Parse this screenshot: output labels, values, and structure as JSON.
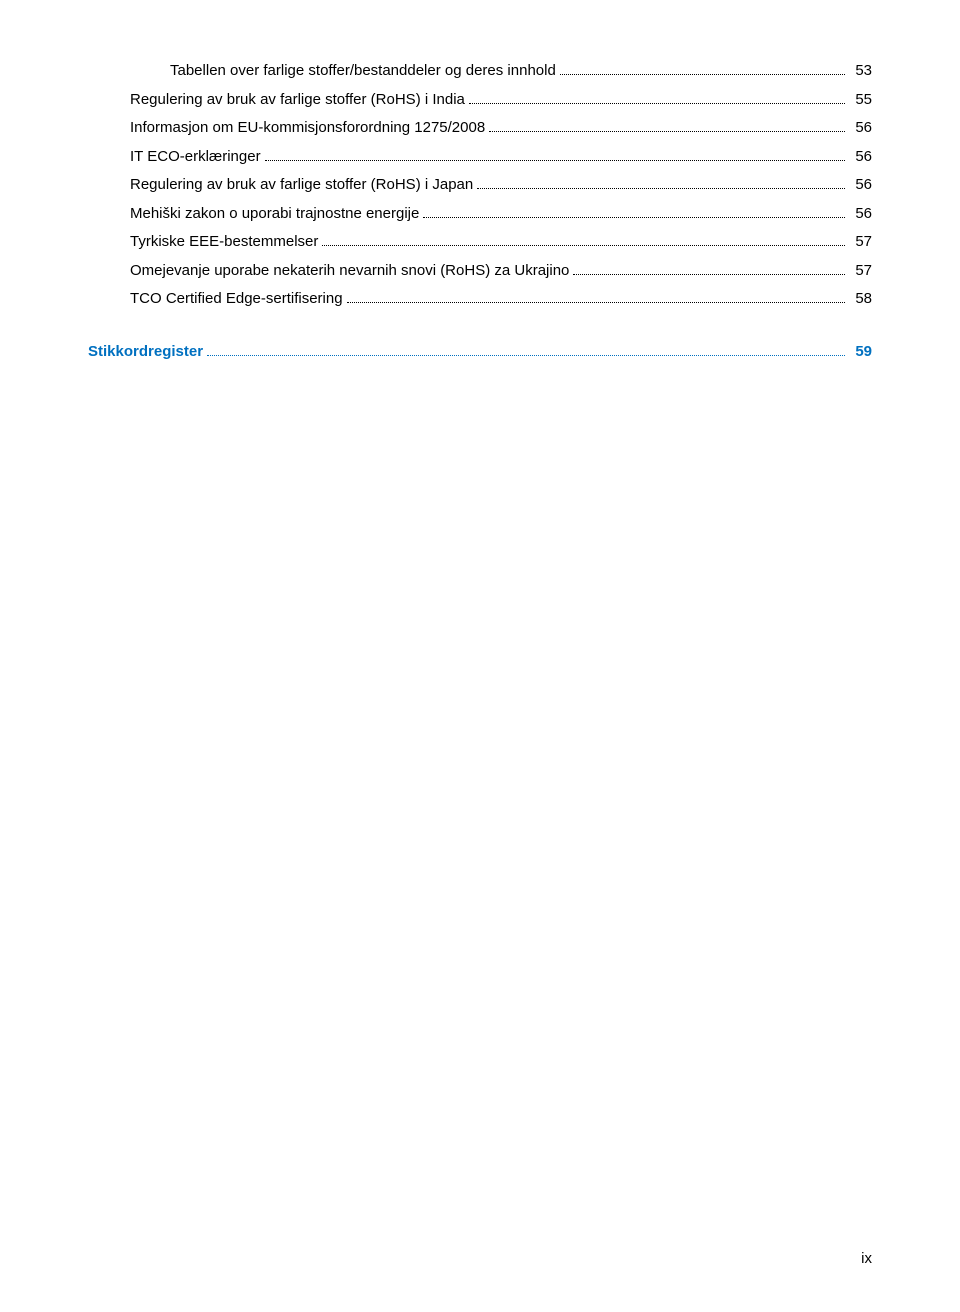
{
  "toc": {
    "entries": [
      {
        "label": "Tabellen over farlige stoffer/bestanddeler og deres innhold",
        "page": "53",
        "level": 2
      },
      {
        "label": "Regulering av bruk av farlige stoffer (RoHS) i India",
        "page": "55",
        "level": 1
      },
      {
        "label": "Informasjon om EU-kommisjonsforordning 1275/2008",
        "page": "56",
        "level": 1
      },
      {
        "label": "IT ECO-erklæringer",
        "page": "56",
        "level": 1
      },
      {
        "label": "Regulering av bruk av farlige stoffer (RoHS) i Japan",
        "page": "56",
        "level": 1
      },
      {
        "label": "Mehiški zakon o uporabi trajnostne energije",
        "page": "56",
        "level": 1
      },
      {
        "label": "Tyrkiske EEE-bestemmelser",
        "page": "57",
        "level": 1
      },
      {
        "label": "Omejevanje uporabe nekaterih nevarnih snovi (RoHS) za Ukrajino",
        "page": "57",
        "level": 1
      },
      {
        "label": "TCO Certified Edge-sertifisering",
        "page": "58",
        "level": 1
      }
    ],
    "stikk": {
      "label": "Stikkordregister",
      "page": "59"
    }
  },
  "footer": {
    "page_marker": "ix"
  },
  "colors": {
    "text": "#000000",
    "link": "#0070c0",
    "background": "#ffffff"
  },
  "typography": {
    "body_fontsize": 15,
    "font_family": "Arial, Helvetica, sans-serif"
  }
}
